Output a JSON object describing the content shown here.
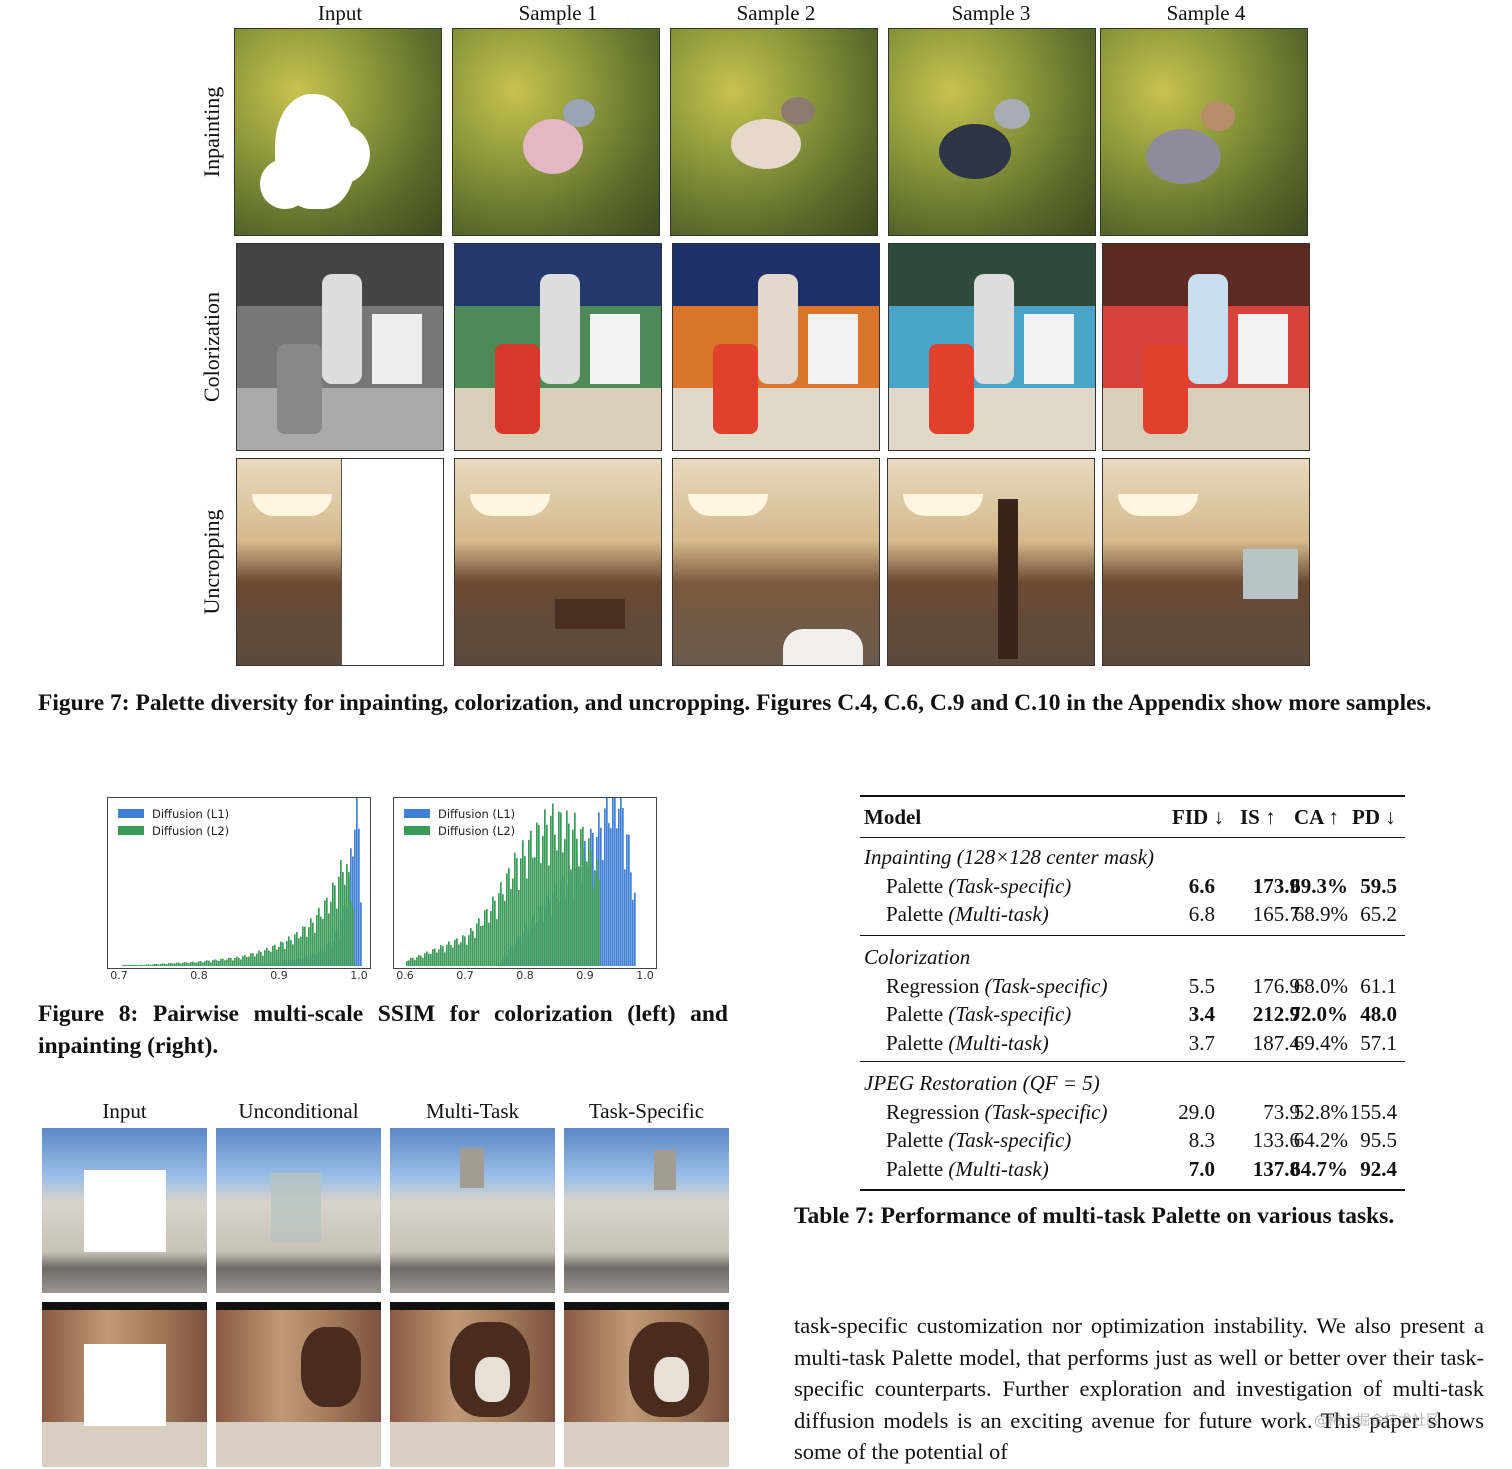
{
  "figure7": {
    "columns": [
      "Input",
      "Sample 1",
      "Sample 2",
      "Sample 3",
      "Sample 4"
    ],
    "rows": [
      "Inpainting",
      "Colorization",
      "Uncropping"
    ],
    "caption": "Figure 7: Palette diversity for inpainting, colorization, and uncropping. Figures C.4, C.6, C.9 and C.10 in the Appendix show more samples."
  },
  "figure8": {
    "caption": "Figure 8: Pairwise multi-scale SSIM for colorization (left) and inpainting (right).",
    "colors": {
      "l1": "#3f7fd4",
      "l2": "#3a9a58"
    }
  },
  "chart_data": [
    {
      "type": "bar",
      "legend": [
        "Diffusion (L1)",
        "Diffusion (L2)"
      ],
      "xticks": [
        "0.7",
        "0.8",
        "0.9",
        "1.0"
      ],
      "xlim": [
        0.7,
        1.0
      ],
      "series": [
        {
          "name": "Diffusion (L1)",
          "x": [
            0.9,
            0.92,
            0.94,
            0.955,
            0.965,
            0.975,
            0.985,
            0.99,
            0.995,
            1.0
          ],
          "values": [
            2,
            3,
            5,
            8,
            12,
            20,
            38,
            60,
            80,
            40
          ]
        },
        {
          "name": "Diffusion (L2)",
          "x": [
            0.75,
            0.8,
            0.85,
            0.88,
            0.9,
            0.92,
            0.94,
            0.95,
            0.96,
            0.97,
            0.98,
            0.99
          ],
          "values": [
            1,
            2,
            4,
            7,
            10,
            14,
            20,
            25,
            30,
            38,
            48,
            30
          ]
        }
      ]
    },
    {
      "type": "bar",
      "legend": [
        "Diffusion (L1)",
        "Diffusion (L2)"
      ],
      "xticks": [
        "0.6",
        "0.7",
        "0.8",
        "0.9",
        "1.0"
      ],
      "xlim": [
        0.6,
        1.0
      ],
      "series": [
        {
          "name": "Diffusion (L1)",
          "x": [
            0.8,
            0.84,
            0.88,
            0.9,
            0.92,
            0.94,
            0.95,
            0.96,
            0.97,
            0.98
          ],
          "values": [
            20,
            35,
            50,
            60,
            70,
            85,
            90,
            80,
            60,
            35
          ]
        },
        {
          "name": "Diffusion (L2)",
          "x": [
            0.62,
            0.66,
            0.7,
            0.72,
            0.74,
            0.76,
            0.78,
            0.8,
            0.82,
            0.84,
            0.86,
            0.88,
            0.9,
            0.92
          ],
          "values": [
            5,
            10,
            15,
            22,
            30,
            40,
            52,
            60,
            68,
            75,
            72,
            70,
            62,
            45
          ]
        }
      ]
    }
  ],
  "figure9": {
    "columns": [
      "Input",
      "Unconditional",
      "Multi-Task",
      "Task-Specific"
    ]
  },
  "table7": {
    "headers": [
      "Model",
      "FID ↓",
      "IS ↑",
      "CA ↑",
      "PD ↓"
    ],
    "groups": [
      {
        "title": "Inpainting (128×128 center mask)",
        "rows": [
          {
            "model": "Palette",
            "variant": "(Task-specific)",
            "fid": "6.6",
            "is": "173.9",
            "ca": "69.3%",
            "pd": "59.5",
            "bold": true
          },
          {
            "model": "Palette",
            "variant": "(Multi-task)",
            "fid": "6.8",
            "is": "165.7",
            "ca": "68.9%",
            "pd": "65.2",
            "bold": false
          }
        ]
      },
      {
        "title": "Colorization",
        "rows": [
          {
            "model": "Regression",
            "variant": "(Task-specific)",
            "fid": "5.5",
            "is": "176.9",
            "ca": "68.0%",
            "pd": "61.1",
            "bold": false
          },
          {
            "model": "Palette",
            "variant": "(Task-specific)",
            "fid": "3.4",
            "is": "212.9",
            "ca": "72.0%",
            "pd": "48.0",
            "bold": true
          },
          {
            "model": "Palette",
            "variant": "(Multi-task)",
            "fid": "3.7",
            "is": "187.4",
            "ca": "69.4%",
            "pd": "57.1",
            "bold": false
          }
        ]
      },
      {
        "title": "JPEG Restoration (QF = 5)",
        "rows": [
          {
            "model": "Regression",
            "variant": "(Task-specific)",
            "fid": "29.0",
            "is": "73.9",
            "ca": "52.8%",
            "pd": "155.4",
            "bold": false
          },
          {
            "model": "Palette",
            "variant": "(Task-specific)",
            "fid": "8.3",
            "is": "133.6",
            "ca": "64.2%",
            "pd": "95.5",
            "bold": false
          },
          {
            "model": "Palette",
            "variant": "(Multi-task)",
            "fid": "7.0",
            "is": "137.8",
            "ca": "64.7%",
            "pd": "92.4",
            "bold": true
          }
        ]
      }
    ],
    "caption": "Table 7: Performance of multi-task Palette on various tasks."
  },
  "body_text": "task-specific customization nor optimization instability. We also present a multi-task Palette model, that performs just as well or better over their task-specific counterparts. Further exploration and investigation of multi-task diffusion models is an exciting avenue for future work. This paper shows some of the potential of",
  "watermark": "@稀土掘金技术社区"
}
